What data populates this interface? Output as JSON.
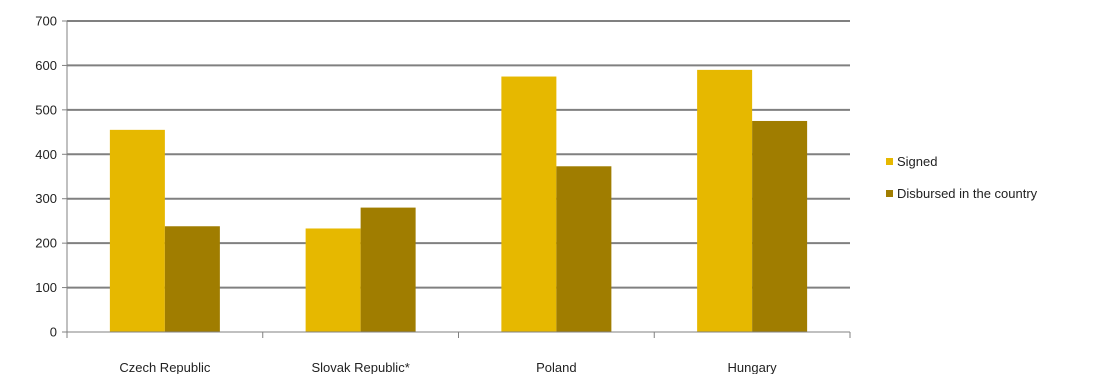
{
  "chart_data": {
    "type": "bar",
    "title": "",
    "xlabel": "",
    "ylabel": "",
    "categories": [
      "Czech Republic",
      "Slovak Republic*",
      "Poland",
      "Hungary"
    ],
    "series": [
      {
        "name": "Signed",
        "values": [
          455,
          233,
          575,
          590
        ],
        "color": "#e6b800"
      },
      {
        "name": "Disbursed in the country",
        "values": [
          238,
          280,
          373,
          475
        ],
        "color": "#a07d00"
      }
    ],
    "ylim": [
      0,
      700
    ],
    "yticks": [
      0,
      100,
      200,
      300,
      400,
      500,
      600,
      700
    ],
    "grid": true,
    "gridline_color": "#808080",
    "legend_position": "right"
  }
}
